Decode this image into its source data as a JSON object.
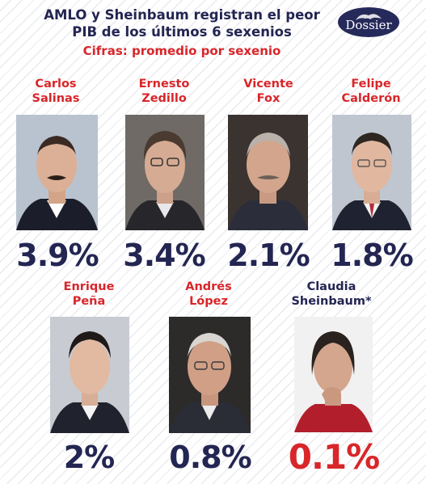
{
  "header": {
    "title": "AMLO y Sheinbaum registran el peor PIB de los últimos 6 sexenios",
    "subtitle": "Cifras: promedio por sexenio",
    "logo_text": "Dossier"
  },
  "colors": {
    "navy": "#232552",
    "red": "#d8262a"
  },
  "chart_data": {
    "type": "table",
    "title": "AMLO y Sheinbaum registran el peor PIB de los últimos 6 sexenios",
    "subtitle": "Cifras: promedio por sexenio",
    "categories": [
      "Carlos Salinas",
      "Ernesto Zedillo",
      "Vicente Fox",
      "Felipe Calderón",
      "Enrique Peña",
      "Andrés López",
      "Claudia Sheinbaum*"
    ],
    "values": [
      3.9,
      3.4,
      2.1,
      1.8,
      2,
      0.8,
      0.1
    ],
    "labels": [
      "3.9%",
      "3.4%",
      "2.1%",
      "1.8%",
      "2%",
      "0.8%",
      "0.1%"
    ],
    "names": [
      "Carlos\nSalinas",
      "Ernesto\nZedillo",
      "Vicente\nFox",
      "Felipe\nCalderón",
      "Enrique\nPeña",
      "Andrés\nLópez",
      "Claudia\nSheinbaum*"
    ],
    "highlight_index": 6
  }
}
